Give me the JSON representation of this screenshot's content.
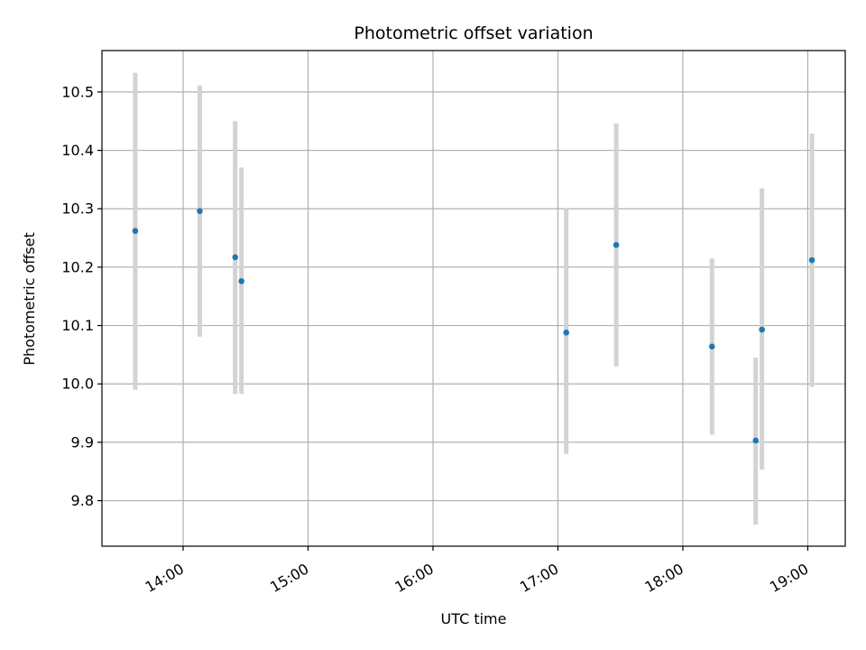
{
  "chart_data": {
    "type": "scatter",
    "title": "Photometric offset variation",
    "xlabel": "UTC time",
    "ylabel": "Photometric offset",
    "grid": true,
    "x_axis_type": "time",
    "xlim": [
      "13:21",
      "19:18"
    ],
    "ylim": [
      9.722,
      10.571
    ],
    "x_ticks": [
      "14:00",
      "15:00",
      "16:00",
      "17:00",
      "18:00",
      "19:00"
    ],
    "y_ticks": [
      9.8,
      9.9,
      10.0,
      10.1,
      10.2,
      10.3,
      10.4,
      10.5
    ],
    "y_tick_labels": [
      "9.8",
      "9.9",
      "10.0",
      "10.1",
      "10.2",
      "10.3",
      "10.4",
      "10.5"
    ],
    "point_color": "#1f77b4",
    "errorbar_color": "#d3d3d3",
    "points": [
      {
        "x": "13:37",
        "y": 10.262,
        "ylow": 9.99,
        "yhigh": 10.533
      },
      {
        "x": "14:08",
        "y": 10.296,
        "ylow": 10.081,
        "yhigh": 10.511
      },
      {
        "x": "14:25",
        "y": 10.217,
        "ylow": 9.983,
        "yhigh": 10.45
      },
      {
        "x": "14:28",
        "y": 10.176,
        "ylow": 9.983,
        "yhigh": 10.371
      },
      {
        "x": "17:04",
        "y": 10.088,
        "ylow": 9.88,
        "yhigh": 10.3
      },
      {
        "x": "17:28",
        "y": 10.238,
        "ylow": 10.03,
        "yhigh": 10.446
      },
      {
        "x": "18:14",
        "y": 10.064,
        "ylow": 9.913,
        "yhigh": 10.215
      },
      {
        "x": "18:35",
        "y": 9.903,
        "ylow": 9.759,
        "yhigh": 10.045
      },
      {
        "x": "18:38",
        "y": 10.093,
        "ylow": 9.853,
        "yhigh": 10.335
      },
      {
        "x": "19:02",
        "y": 10.212,
        "ylow": 9.995,
        "yhigh": 10.429
      }
    ]
  }
}
